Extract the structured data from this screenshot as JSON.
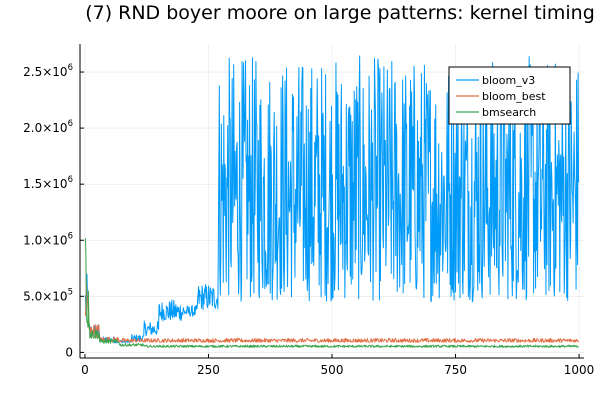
{
  "chart_data": {
    "type": "line",
    "title": "(7) RND boyer moore on large patterns: kernel timing",
    "xlabel": "",
    "ylabel": "",
    "xlim": [
      -10,
      1010
    ],
    "ylim": [
      -50000,
      2750000
    ],
    "grid": true,
    "legend_position": "top-right",
    "x_ticks": [
      {
        "value": 0,
        "label": "0"
      },
      {
        "value": 250,
        "label": "250"
      },
      {
        "value": 500,
        "label": "500"
      },
      {
        "value": 750,
        "label": "750"
      },
      {
        "value": 1000,
        "label": "1000"
      }
    ],
    "y_ticks": [
      {
        "value": 0,
        "mantissa": "0",
        "exponent": ""
      },
      {
        "value": 500000,
        "mantissa": "5.0×10",
        "exponent": "5"
      },
      {
        "value": 1000000,
        "mantissa": "1.0×10",
        "exponent": "6"
      },
      {
        "value": 1500000,
        "mantissa": "1.5×10",
        "exponent": "6"
      },
      {
        "value": 2000000,
        "mantissa": "2.0×10",
        "exponent": "6"
      },
      {
        "value": 2500000,
        "mantissa": "2.5×10",
        "exponent": "6"
      }
    ],
    "series": [
      {
        "name": "bloom_v3",
        "color": "#009af9",
        "pattern": "x 1–1000 step 1; high-frequency noise within the bands listed below",
        "bands": [
          {
            "x_start": 1,
            "x_end": 8,
            "low": 250000,
            "high": 700000
          },
          {
            "x_start": 8,
            "x_end": 30,
            "low": 130000,
            "high": 260000
          },
          {
            "x_start": 30,
            "x_end": 60,
            "low": 95000,
            "high": 140000
          },
          {
            "x_start": 60,
            "x_end": 95,
            "low": 85000,
            "high": 110000
          },
          {
            "x_start": 95,
            "x_end": 120,
            "low": 100000,
            "high": 160000
          },
          {
            "x_start": 120,
            "x_end": 150,
            "low": 150000,
            "high": 280000
          },
          {
            "x_start": 150,
            "x_end": 200,
            "low": 280000,
            "high": 470000
          },
          {
            "x_start": 200,
            "x_end": 228,
            "low": 320000,
            "high": 420000
          },
          {
            "x_start": 228,
            "x_end": 270,
            "low": 380000,
            "high": 620000
          },
          {
            "x_start": 270,
            "x_end": 1000,
            "low": 450000,
            "high": 2650000
          }
        ]
      },
      {
        "name": "bloom_best",
        "color": "#e26f46",
        "pattern": "x 1–1000 step 1; high-frequency noise within the bands listed below",
        "bands": [
          {
            "x_start": 1,
            "x_end": 8,
            "low": 250000,
            "high": 750000
          },
          {
            "x_start": 8,
            "x_end": 30,
            "low": 130000,
            "high": 260000
          },
          {
            "x_start": 30,
            "x_end": 70,
            "low": 95000,
            "high": 140000
          },
          {
            "x_start": 70,
            "x_end": 1000,
            "low": 90000,
            "high": 125000
          }
        ]
      },
      {
        "name": "bmsearch",
        "color": "#3da44d",
        "pattern": "x 1–1000 step 1; high-frequency noise within the bands listed below",
        "bands": [
          {
            "x_start": 1,
            "x_end": 3,
            "low": 800000,
            "high": 1280000
          },
          {
            "x_start": 3,
            "x_end": 10,
            "low": 200000,
            "high": 600000
          },
          {
            "x_start": 10,
            "x_end": 30,
            "low": 120000,
            "high": 220000
          },
          {
            "x_start": 30,
            "x_end": 70,
            "low": 80000,
            "high": 120000
          },
          {
            "x_start": 70,
            "x_end": 120,
            "low": 55000,
            "high": 80000
          },
          {
            "x_start": 120,
            "x_end": 1000,
            "low": 45000,
            "high": 65000
          }
        ]
      }
    ]
  }
}
